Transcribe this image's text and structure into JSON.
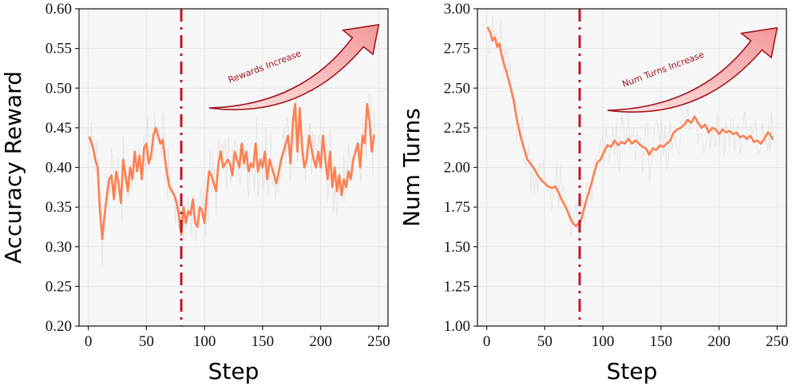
{
  "chart_data": [
    {
      "type": "line",
      "xlabel": "Step",
      "ylabel": "Accuracy Reward",
      "xlim": [
        -8,
        258
      ],
      "ylim": [
        0.2,
        0.6
      ],
      "x_ticks": [
        0,
        50,
        100,
        150,
        200,
        250
      ],
      "y_ticks": [
        "0.20",
        "0.25",
        "0.30",
        "0.35",
        "0.40",
        "0.45",
        "0.50",
        "0.55",
        "0.60"
      ],
      "grid": true,
      "vline": {
        "x": 80,
        "style": "dash-dot",
        "color": "#c0182a"
      },
      "annotation": {
        "text": "Rewards Increase",
        "from": [
          104,
          0.475
        ],
        "to": [
          250,
          0.58
        ]
      },
      "series": [
        {
          "style": "smoothed",
          "color": "#ff7f50",
          "x": [
            1,
            4,
            6,
            8,
            10,
            12,
            14,
            16,
            18,
            20,
            22,
            24,
            26,
            28,
            30,
            32,
            34,
            36,
            38,
            40,
            42,
            44,
            46,
            48,
            50,
            52,
            54,
            56,
            58,
            60,
            62,
            64,
            66,
            68,
            70,
            72,
            74,
            76,
            78,
            80,
            82,
            84,
            86,
            88,
            90,
            92,
            94,
            96,
            98,
            100,
            102,
            104,
            106,
            108,
            110,
            112,
            114,
            116,
            118,
            120,
            122,
            124,
            126,
            128,
            130,
            132,
            134,
            136,
            138,
            140,
            142,
            144,
            146,
            148,
            150,
            152,
            154,
            156,
            158,
            160,
            162,
            164,
            166,
            168,
            170,
            172,
            174,
            176,
            178,
            180,
            182,
            184,
            186,
            188,
            190,
            192,
            194,
            196,
            198,
            200,
            202,
            204,
            206,
            208,
            210,
            212,
            214,
            216,
            218,
            220,
            222,
            224,
            226,
            228,
            230,
            232,
            234,
            236,
            238,
            240,
            242,
            244,
            246
          ],
          "values": [
            0.438,
            0.425,
            0.41,
            0.4,
            0.345,
            0.31,
            0.34,
            0.365,
            0.385,
            0.39,
            0.36,
            0.395,
            0.38,
            0.355,
            0.41,
            0.39,
            0.37,
            0.4,
            0.385,
            0.42,
            0.395,
            0.415,
            0.385,
            0.425,
            0.43,
            0.405,
            0.415,
            0.44,
            0.45,
            0.44,
            0.43,
            0.435,
            0.41,
            0.39,
            0.375,
            0.37,
            0.365,
            0.355,
            0.34,
            0.315,
            0.35,
            0.33,
            0.345,
            0.34,
            0.36,
            0.33,
            0.325,
            0.35,
            0.345,
            0.33,
            0.365,
            0.395,
            0.39,
            0.38,
            0.37,
            0.405,
            0.42,
            0.4,
            0.405,
            0.41,
            0.405,
            0.39,
            0.42,
            0.41,
            0.4,
            0.43,
            0.405,
            0.42,
            0.395,
            0.405,
            0.4,
            0.43,
            0.395,
            0.41,
            0.4,
            0.42,
            0.385,
            0.41,
            0.4,
            0.39,
            0.38,
            0.395,
            0.41,
            0.42,
            0.43,
            0.44,
            0.405,
            0.455,
            0.48,
            0.42,
            0.475,
            0.425,
            0.4,
            0.41,
            0.44,
            0.425,
            0.41,
            0.4,
            0.42,
            0.4,
            0.44,
            0.41,
            0.385,
            0.42,
            0.375,
            0.4,
            0.37,
            0.39,
            0.365,
            0.385,
            0.375,
            0.395,
            0.385,
            0.41,
            0.42,
            0.43,
            0.4,
            0.44,
            0.43,
            0.48,
            0.46,
            0.42,
            0.44
          ]
        }
      ]
    },
    {
      "type": "line",
      "xlabel": "Step",
      "ylabel": "Num Turns",
      "xlim": [
        -8,
        258
      ],
      "ylim": [
        1.0,
        3.0
      ],
      "x_ticks": [
        0,
        50,
        100,
        150,
        200,
        250
      ],
      "y_ticks": [
        "1.00",
        "1.25",
        "1.50",
        "1.75",
        "2.00",
        "2.25",
        "2.50",
        "2.75",
        "3.00"
      ],
      "grid": true,
      "vline": {
        "x": 80,
        "style": "dash-dot",
        "color": "#c0182a"
      },
      "annotation": {
        "text": "Num Turns Increase",
        "from": [
          104,
          2.36
        ],
        "to": [
          250,
          2.88
        ]
      },
      "series": [
        {
          "style": "smoothed",
          "color": "#ff7f50",
          "x": [
            1,
            3,
            5,
            7,
            9,
            11,
            13,
            15,
            17,
            20,
            23,
            26,
            29,
            32,
            35,
            38,
            41,
            44,
            47,
            50,
            53,
            56,
            59,
            62,
            65,
            68,
            71,
            74,
            77,
            79,
            81,
            83,
            86,
            89,
            92,
            95,
            98,
            101,
            104,
            107,
            110,
            113,
            116,
            119,
            122,
            125,
            128,
            131,
            134,
            137,
            140,
            143,
            146,
            149,
            152,
            155,
            158,
            161,
            164,
            167,
            170,
            173,
            176,
            179,
            182,
            185,
            188,
            191,
            194,
            197,
            200,
            203,
            206,
            209,
            212,
            215,
            218,
            221,
            224,
            227,
            230,
            233,
            236,
            239,
            242,
            244,
            246
          ],
          "values": [
            2.88,
            2.85,
            2.8,
            2.82,
            2.76,
            2.78,
            2.7,
            2.65,
            2.6,
            2.52,
            2.43,
            2.3,
            2.2,
            2.12,
            2.05,
            2.02,
            1.99,
            1.95,
            1.92,
            1.9,
            1.88,
            1.87,
            1.88,
            1.84,
            1.79,
            1.75,
            1.7,
            1.65,
            1.63,
            1.65,
            1.66,
            1.72,
            1.8,
            1.87,
            1.95,
            2.03,
            2.05,
            2.1,
            2.14,
            2.13,
            2.17,
            2.14,
            2.16,
            2.15,
            2.18,
            2.15,
            2.17,
            2.15,
            2.13,
            2.12,
            2.08,
            2.12,
            2.11,
            2.14,
            2.13,
            2.15,
            2.17,
            2.22,
            2.24,
            2.25,
            2.27,
            2.3,
            2.28,
            2.32,
            2.28,
            2.25,
            2.27,
            2.22,
            2.25,
            2.24,
            2.21,
            2.24,
            2.22,
            2.23,
            2.21,
            2.22,
            2.19,
            2.2,
            2.18,
            2.2,
            2.16,
            2.17,
            2.15,
            2.18,
            2.22,
            2.21,
            2.18
          ]
        }
      ]
    }
  ]
}
